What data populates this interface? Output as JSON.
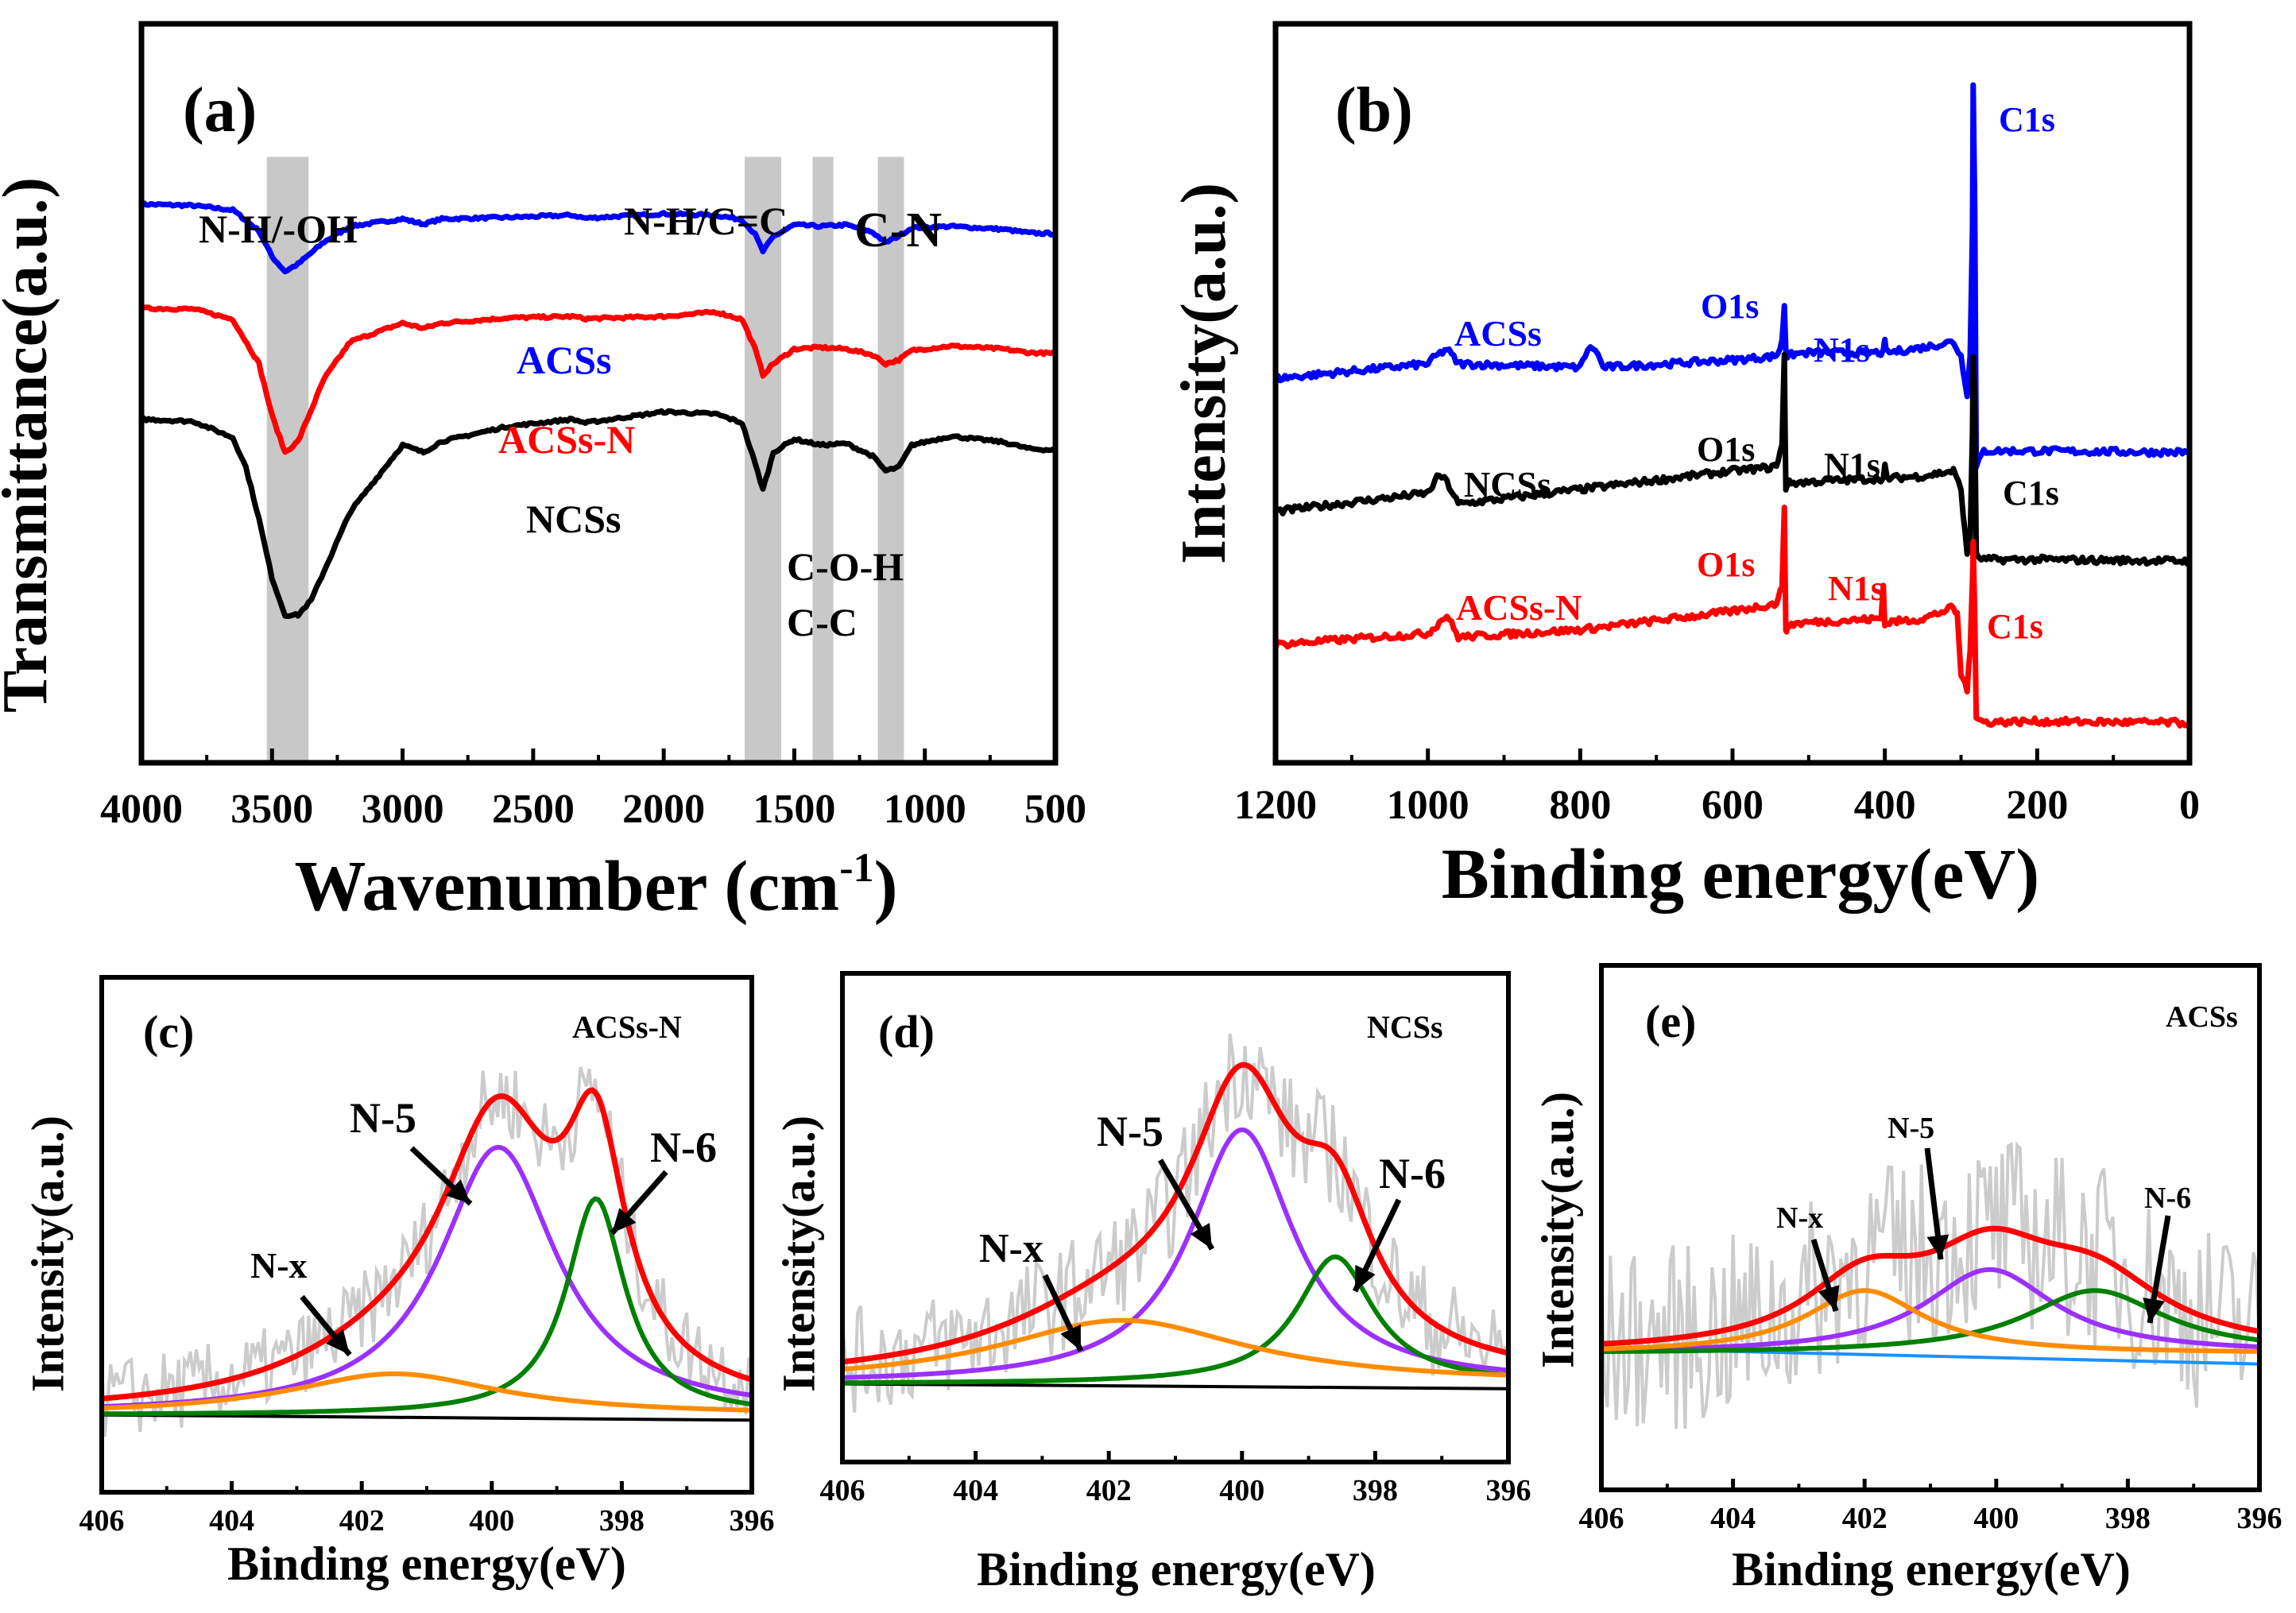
{
  "figure": {
    "colors": {
      "blue": "#0000ff",
      "red": "#ff0000",
      "black": "#000000",
      "purple": "#9b30ff",
      "green": "#008000",
      "orange": "#ff8c00",
      "gray": "#cccccc",
      "lightblue": "#1e90ff"
    }
  },
  "chart_data": [
    {
      "id": "a",
      "type": "line",
      "panel_label": "(a)",
      "xlabel": "Wavenumber (cm",
      "xlabel_sup": "-1",
      "xlabel_tail": ")",
      "ylabel": "Transmittance(a.u.)",
      "xlim": [
        4000,
        500
      ],
      "ylim": [
        0,
        100
      ],
      "xticks": [
        "4000",
        "3500",
        "3000",
        "2500",
        "2000",
        "1500",
        "1000",
        "500"
      ],
      "bands": [
        [
          3520,
          3360
        ],
        [
          1690,
          1550
        ],
        [
          1430,
          1350
        ],
        [
          1180,
          1080
        ]
      ],
      "annotations": [
        "N-H/-OH",
        "N-H/C=C",
        "C-N",
        "C-O-H",
        "C-C"
      ],
      "series": [
        {
          "name": "ACSs",
          "color": "#0000ff",
          "x": [
            4000,
            3800,
            3650,
            3550,
            3500,
            3450,
            3400,
            3300,
            3200,
            3000,
            2920,
            2850,
            2600,
            2350,
            2300,
            2000,
            1800,
            1700,
            1650,
            1620,
            1580,
            1500,
            1400,
            1300,
            1200,
            1150,
            1100,
            1050,
            900,
            700,
            600,
            500
          ],
          "y": [
            75.6,
            75.4,
            74.8,
            72,
            68.5,
            66.5,
            67.5,
            70.5,
            72.6,
            73.6,
            72.9,
            73.6,
            73.8,
            74.1,
            73.7,
            74.3,
            74.1,
            73.5,
            71.5,
            69.2,
            71.2,
            72.8,
            72.6,
            72.8,
            71.8,
            70.4,
            71.3,
            72.4,
            72.6,
            72.2,
            71.7,
            71.6
          ]
        },
        {
          "name": "ACSs-N",
          "color": "#ff0000",
          "x": [
            4000,
            3800,
            3650,
            3550,
            3500,
            3450,
            3400,
            3300,
            3200,
            3000,
            2920,
            2850,
            2600,
            2350,
            2300,
            2000,
            1800,
            1700,
            1650,
            1620,
            1580,
            1500,
            1400,
            1300,
            1200,
            1150,
            1100,
            1050,
            900,
            700,
            600,
            500
          ],
          "y": [
            61.5,
            61.4,
            60,
            54,
            47,
            42,
            43.5,
            52,
            57,
            59.5,
            58.8,
            59.5,
            60.2,
            60.4,
            60.1,
            60.4,
            61,
            60,
            56,
            52.5,
            54,
            56,
            56.2,
            56,
            55.2,
            54,
            54.5,
            55.8,
            56.4,
            56,
            55.5,
            55.4
          ]
        },
        {
          "name": "NCSs",
          "color": "#000000",
          "x": [
            4000,
            3800,
            3650,
            3600,
            3550,
            3500,
            3450,
            3400,
            3350,
            3300,
            3200,
            3000,
            2920,
            2850,
            2600,
            2350,
            2300,
            2000,
            1800,
            1700,
            1650,
            1620,
            1580,
            1500,
            1400,
            1300,
            1200,
            1150,
            1100,
            1050,
            900,
            700,
            600,
            500
          ],
          "y": [
            46.5,
            46.2,
            44,
            40,
            33,
            25,
            20,
            20,
            22,
            26,
            34,
            43,
            42,
            43.5,
            45.5,
            46.5,
            46,
            47.5,
            47.2,
            46,
            40.5,
            37,
            42,
            43.8,
            43,
            43.2,
            41.5,
            39.5,
            40,
            43,
            44.2,
            43.4,
            42.5,
            42.3
          ]
        }
      ],
      "series_labels": [
        "ACSs",
        "ACSs-N",
        "NCSs"
      ]
    },
    {
      "id": "b",
      "type": "line",
      "panel_label": "(b)",
      "xlabel": "Binding energy(eV)",
      "ylabel": "Intensity(a.u.)",
      "xlim": [
        1200,
        0
      ],
      "ylim": [
        0,
        100
      ],
      "xticks": [
        "1200",
        "1000",
        "800",
        "600",
        "400",
        "200",
        "0"
      ],
      "series": [
        {
          "name": "ACSs",
          "color": "#0000ff",
          "x": [
            1200,
            1000,
            990,
            975,
            960,
            800,
            790,
            780,
            770,
            600,
            545,
            540,
            535,
            532,
            530,
            528,
            520,
            500,
            402,
            400,
            397,
            350,
            310,
            300,
            292,
            288,
            285,
            284,
            282,
            280,
            270,
            200,
            100,
            0
          ],
          "y": [
            52,
            54,
            55,
            56,
            54,
            53.5,
            56,
            56,
            53.5,
            54.5,
            55,
            55.5,
            57,
            62,
            56,
            55,
            55.3,
            55.5,
            55.5,
            57,
            55.5,
            56.2,
            57,
            55,
            50,
            55,
            72,
            92,
            75,
            40,
            42.2,
            42.2,
            42.1,
            42
          ]
        },
        {
          "name": "NCSs",
          "color": "#000000",
          "x": [
            1200,
            1000,
            985,
            975,
            960,
            800,
            600,
            545,
            540,
            535,
            532,
            530,
            528,
            520,
            500,
            402,
            400,
            397,
            350,
            310,
            300,
            292,
            288,
            285,
            284,
            282,
            280,
            270,
            200,
            100,
            0
          ],
          "y": [
            34,
            36.5,
            39,
            38,
            35,
            37,
            39.5,
            40,
            41,
            43,
            55,
            37,
            37.8,
            37.9,
            38,
            38.5,
            40,
            38.5,
            38.8,
            39.5,
            37,
            28,
            30,
            45,
            55,
            48,
            28,
            27.5,
            27.5,
            27.4,
            27.3
          ]
        },
        {
          "name": "ACSs-N",
          "color": "#ff0000",
          "x": [
            1200,
            1000,
            985,
            975,
            960,
            800,
            600,
            545,
            540,
            535,
            532,
            530,
            528,
            520,
            500,
            405,
            402,
            400,
            397,
            350,
            310,
            305,
            300,
            292,
            288,
            285,
            284,
            282,
            280,
            270,
            200,
            100,
            0
          ],
          "y": [
            16,
            17.5,
            19,
            20,
            17,
            18,
            20.5,
            21.5,
            22,
            24,
            35,
            17.5,
            18.5,
            18.8,
            19,
            19.5,
            24,
            18.5,
            19,
            19.5,
            21,
            20,
            12,
            10,
            15,
            25,
            30,
            20,
            6,
            5.5,
            5.6,
            5.5,
            5.4
          ]
        }
      ],
      "series_labels": [
        "ACSs",
        "NCSs",
        "ACSs-N"
      ],
      "peak_labels": [
        "O1s",
        "N1s",
        "C1s",
        "O1s",
        "N1s",
        "C1s",
        "O1s",
        "N1s",
        "C1s"
      ]
    },
    {
      "id": "c",
      "type": "line",
      "panel_label": "(c)",
      "sample": "ACSs-N",
      "xlabel": "Binding energy(eV)",
      "ylabel": "Intensity(a.u.)",
      "xlim": [
        406,
        396
      ],
      "ylim": [
        0,
        100
      ],
      "xticks": [
        "406",
        "404",
        "402",
        "400",
        "398",
        "396"
      ],
      "peak_labels": [
        "N-5",
        "N-6",
        "N-x"
      ],
      "baseline": 15,
      "components": [
        {
          "name": "N-5",
          "color": "#9b30ff",
          "center": 399.9,
          "height": 52,
          "width": 1.1
        },
        {
          "name": "N-6",
          "color": "#008000",
          "center": 398.4,
          "height": 42,
          "width": 0.55
        },
        {
          "name": "N-x",
          "color": "#ff8c00",
          "center": 401.5,
          "height": 8,
          "width": 2.0
        }
      ],
      "envelope_color": "#ff0000",
      "raw_color": "#cccccc"
    },
    {
      "id": "d",
      "type": "line",
      "panel_label": "(d)",
      "sample": "NCSs",
      "xlabel": "Binding energy(eV)",
      "ylabel": "Intensity(a.u.)",
      "xlim": [
        406,
        396
      ],
      "ylim": [
        0,
        100
      ],
      "xticks": [
        "406",
        "404",
        "402",
        "400",
        "398",
        "396"
      ],
      "peak_labels": [
        "N-5",
        "N-6",
        "N-x"
      ],
      "baseline": 16,
      "components": [
        {
          "name": "N-5",
          "color": "#9b30ff",
          "center": 400.0,
          "height": 52,
          "width": 0.95
        },
        {
          "name": "N-6",
          "color": "#008000",
          "center": 398.6,
          "height": 26,
          "width": 0.7
        },
        {
          "name": "N-x",
          "color": "#ff8c00",
          "center": 401.8,
          "height": 13,
          "width": 2.3
        }
      ],
      "envelope_color": "#ff0000",
      "raw_color": "#cccccc"
    },
    {
      "id": "e",
      "type": "line",
      "panel_label": "(e)",
      "sample": "ACSs",
      "xlabel": "Binding energy(eV)",
      "ylabel": "Intensity(a.u.)",
      "xlim": [
        406,
        396
      ],
      "ylim": [
        0,
        100
      ],
      "xticks": [
        "406",
        "404",
        "402",
        "400",
        "398",
        "396"
      ],
      "peak_labels": [
        "N-5",
        "N-6",
        "N-x"
      ],
      "baseline": 26,
      "components": [
        {
          "name": "N-5",
          "color": "#9b30ff",
          "center": 400.1,
          "height": 16,
          "width": 1.2
        },
        {
          "name": "N-6",
          "color": "#008000",
          "center": 398.5,
          "height": 12,
          "width": 1.3
        },
        {
          "name": "N-x",
          "color": "#ff8c00",
          "center": 402.0,
          "height": 12,
          "width": 1.1
        }
      ],
      "envelope_color": "#ff0000",
      "raw_color": "#cccccc",
      "baseline_color": "#1e90ff"
    }
  ]
}
